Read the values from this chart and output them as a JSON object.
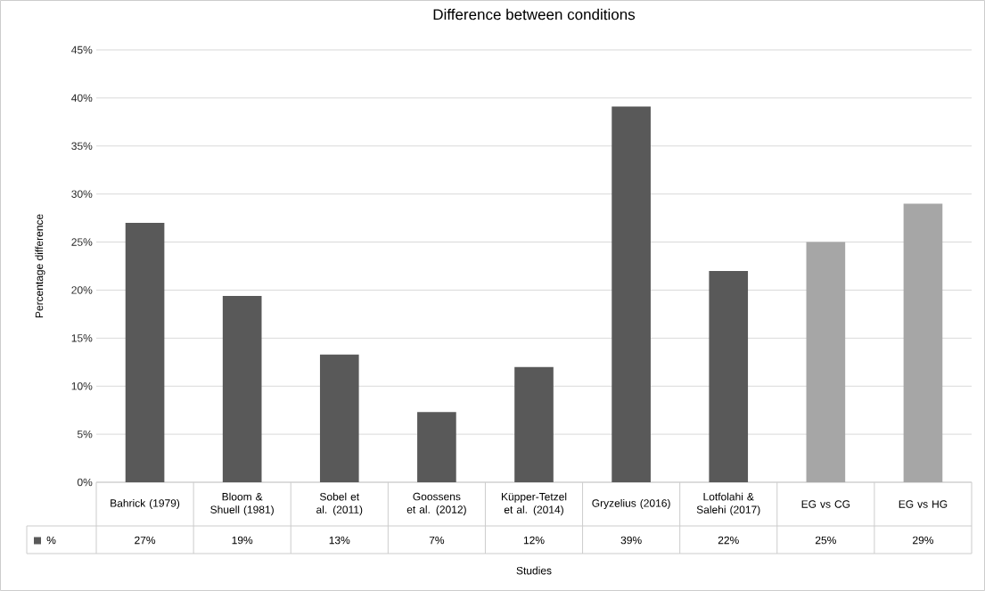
{
  "chart_data": {
    "type": "bar",
    "title": "Difference between conditions",
    "xlabel": "Studies",
    "ylabel": "Percentage difference",
    "categories": [
      "Bahrick (1979)",
      "Bloom & Shuell (1981)",
      "Sobel et al. (2011)",
      "Goossens et al. (2012)",
      "Küpper-Tetzel et al. (2014)",
      "Gryzelius (2016)",
      "Lotfolahi & Salehi (2017)",
      "EG vs CG",
      "EG vs HG"
    ],
    "series": [
      {
        "name": "%",
        "color": "#595959",
        "values": [
          27,
          19.4,
          13.3,
          7.3,
          12,
          39.1,
          22,
          25,
          29
        ],
        "colors": [
          "#595959",
          "#595959",
          "#595959",
          "#595959",
          "#595959",
          "#595959",
          "#595959",
          "#a6a6a6",
          "#a6a6a6"
        ],
        "value_labels": [
          "27%",
          "19%",
          "13%",
          "7%",
          "12%",
          "39%",
          "22%",
          "25%",
          "29%"
        ]
      }
    ],
    "ylim": [
      0,
      45
    ],
    "yticks": [
      {
        "value": 0,
        "label": "0%"
      },
      {
        "value": 5,
        "label": "5%"
      },
      {
        "value": 10,
        "label": "10%"
      },
      {
        "value": 15,
        "label": "15%"
      },
      {
        "value": 20,
        "label": "20%"
      },
      {
        "value": 25,
        "label": "25%"
      },
      {
        "value": 30,
        "label": "30%"
      },
      {
        "value": 35,
        "label": "35%"
      },
      {
        "value": 40,
        "label": "40%"
      },
      {
        "value": 45,
        "label": "45%"
      }
    ],
    "grid": "y",
    "legend": "bottom"
  }
}
